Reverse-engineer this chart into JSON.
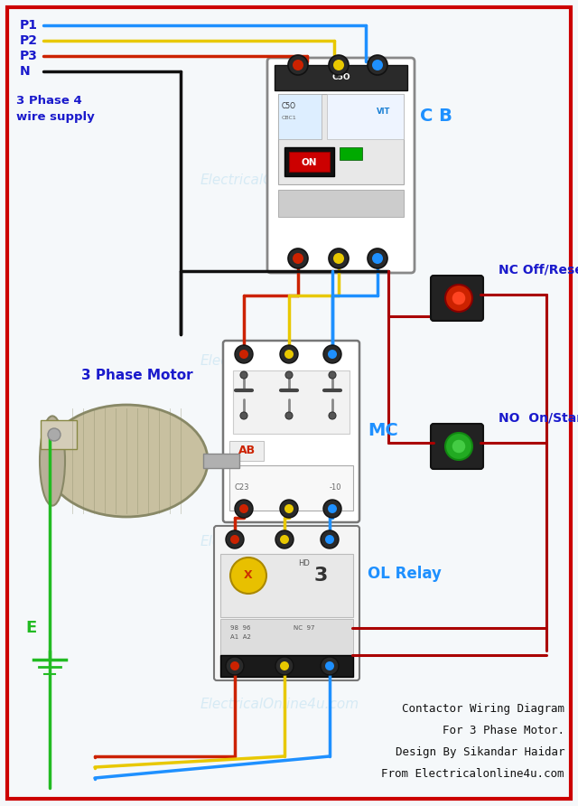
{
  "bg_color": "#f5f8fa",
  "border_color": "#cc0000",
  "wire_P1": "#1e90ff",
  "wire_P2": "#e8c800",
  "wire_P3": "#cc2200",
  "wire_N": "#111111",
  "wire_green": "#22bb22",
  "wire_ctrl": "#aa0000",
  "label_color": "#1a1acc",
  "watermark": "ElectricalOnline4u.com",
  "lbl_P1": "P1",
  "lbl_P2": "P2",
  "lbl_P3": "P3",
  "lbl_N": "N",
  "lbl_supply": "3 Phase 4\nwire supply",
  "lbl_CB": "C B",
  "lbl_MC": "MC",
  "lbl_OL": "OL Relay",
  "lbl_motor": "3 Phase Motor",
  "lbl_E": "E",
  "lbl_NC": "NC Off/Reset",
  "lbl_NO": "NO  On/Start",
  "footer1": "Contactor Wiring Diagram",
  "footer2": "For 3 Phase Motor.",
  "footer3": "Design By Sikandar Haidar",
  "footer4": "From Electricalonline4u.com"
}
